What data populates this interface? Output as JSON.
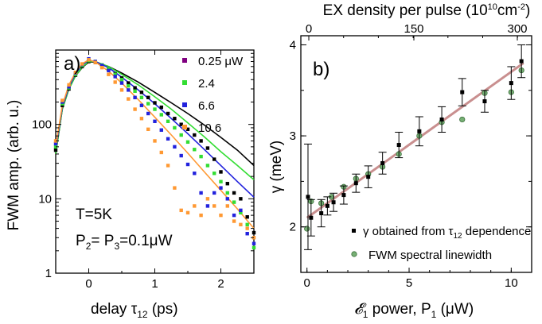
{
  "chart_data": [
    {
      "type": "scatter",
      "panel_label": "a)",
      "xlabel": "delay τ",
      "xlabel_sub": "12",
      "xlabel_unit": " (ps)",
      "ylabel": "FWM amp. (arb. u.)",
      "xlim": [
        -0.5,
        2.5
      ],
      "ylim": [
        1,
        1000
      ],
      "yscale": "log",
      "x_ticks": [
        "0",
        "1",
        "2"
      ],
      "y_ticks": [
        "1",
        "10",
        "100"
      ],
      "annotations": {
        "temperature": "T=5K",
        "power_prefix": "P",
        "power_sub_a": "2",
        "power_mid": "= P",
        "power_sub_b": "3",
        "power_suffix": "=0.1μW"
      },
      "series": [
        {
          "name": "0.25 μW",
          "color": "#800080",
          "points": [
            [
              -0.5,
              45
            ],
            [
              -0.4,
              180
            ],
            [
              -0.3,
              300
            ],
            [
              -0.2,
              460
            ],
            [
              -0.1,
              600
            ],
            [
              0,
              700
            ],
            [
              0.1,
              680
            ],
            [
              0.2,
              620
            ],
            [
              0.3,
              560
            ],
            [
              0.4,
              480
            ],
            [
              0.5,
              420
            ],
            [
              0.6,
              360
            ],
            [
              0.7,
              310
            ],
            [
              0.8,
              270
            ],
            [
              0.9,
              230
            ],
            [
              1.0,
              195
            ],
            [
              1.1,
              170
            ],
            [
              1.2,
              140
            ],
            [
              1.3,
              120
            ],
            [
              1.4,
              100
            ],
            [
              1.5,
              86
            ],
            [
              1.6,
              72
            ],
            [
              1.7,
              60
            ],
            [
              1.8,
              48
            ],
            [
              1.9,
              34
            ],
            [
              2.0,
              23
            ],
            [
              2.1,
              16
            ],
            [
              2.2,
              12
            ],
            [
              2.3,
              10
            ],
            [
              2.4,
              5.7
            ],
            [
              2.5,
              3.5
            ]
          ],
          "fit": [
            [
              -0.5,
              40
            ],
            [
              -0.4,
              160
            ],
            [
              -0.3,
              300
            ],
            [
              -0.2,
              450
            ],
            [
              -0.1,
              580
            ],
            [
              0,
              690
            ],
            [
              0.1,
              690
            ],
            [
              0.3,
              600
            ],
            [
              0.5,
              490
            ],
            [
              0.75,
              370
            ],
            [
              1.0,
              270
            ],
            [
              1.25,
              195
            ],
            [
              1.5,
              140
            ],
            [
              1.75,
              98
            ],
            [
              2.0,
              67
            ],
            [
              2.25,
              45
            ],
            [
              2.5,
              28
            ]
          ]
        },
        {
          "name": "2.4",
          "color": "#33dd33",
          "points": [
            [
              -0.5,
              50
            ],
            [
              -0.4,
              190
            ],
            [
              -0.3,
              310
            ],
            [
              -0.2,
              470
            ],
            [
              -0.1,
              620
            ],
            [
              0,
              720
            ],
            [
              0.1,
              700
            ],
            [
              0.2,
              630
            ],
            [
              0.3,
              560
            ],
            [
              0.4,
              470
            ],
            [
              0.5,
              400
            ],
            [
              0.6,
              330
            ],
            [
              0.7,
              280
            ],
            [
              0.8,
              230
            ],
            [
              0.9,
              190
            ],
            [
              1.0,
              160
            ],
            [
              1.1,
              135
            ],
            [
              1.2,
              110
            ],
            [
              1.3,
              90
            ],
            [
              1.4,
              72
            ],
            [
              1.5,
              58
            ],
            [
              1.6,
              46
            ],
            [
              1.7,
              37
            ],
            [
              1.8,
              28
            ],
            [
              1.9,
              22
            ],
            [
              2.0,
              17
            ],
            [
              2.1,
              12
            ],
            [
              2.2,
              9
            ],
            [
              2.3,
              6.5
            ],
            [
              2.4,
              4.5
            ],
            [
              2.5,
              2.2
            ]
          ],
          "fit": [
            [
              -0.5,
              40
            ],
            [
              -0.4,
              160
            ],
            [
              -0.3,
              300
            ],
            [
              -0.2,
              450
            ],
            [
              -0.1,
              590
            ],
            [
              0,
              700
            ],
            [
              0.1,
              700
            ],
            [
              0.3,
              600
            ],
            [
              0.5,
              470
            ],
            [
              0.75,
              340
            ],
            [
              1.0,
              235
            ],
            [
              1.25,
              160
            ],
            [
              1.5,
              105
            ],
            [
              1.75,
              68
            ],
            [
              2.0,
              43
            ],
            [
              2.25,
              28
            ],
            [
              2.5,
              18
            ]
          ]
        },
        {
          "name": "6.6",
          "color": "#2222dd",
          "points": [
            [
              -0.5,
              55
            ],
            [
              -0.4,
              200
            ],
            [
              -0.3,
              320
            ],
            [
              -0.2,
              490
            ],
            [
              -0.1,
              640
            ],
            [
              0,
              760
            ],
            [
              0.1,
              700
            ],
            [
              0.2,
              620
            ],
            [
              0.3,
              530
            ],
            [
              0.4,
              440
            ],
            [
              0.5,
              360
            ],
            [
              0.6,
              290
            ],
            [
              0.7,
              230
            ],
            [
              0.8,
              180
            ],
            [
              0.9,
              140
            ],
            [
              1.0,
              110
            ],
            [
              1.1,
              84
            ],
            [
              1.2,
              64
            ],
            [
              1.3,
              50
            ],
            [
              1.4,
              38
            ],
            [
              1.5,
              29
            ],
            [
              1.6,
              22
            ],
            [
              1.7,
              12
            ],
            [
              1.8,
              8
            ],
            [
              1.9,
              12
            ],
            [
              2.0,
              14
            ],
            [
              2.1,
              10
            ],
            [
              2.2,
              6
            ],
            [
              2.3,
              7
            ],
            [
              2.4,
              3.4
            ],
            [
              2.5,
              2.5
            ]
          ],
          "fit": [
            [
              -0.5,
              45
            ],
            [
              -0.4,
              170
            ],
            [
              -0.3,
              320
            ],
            [
              -0.2,
              480
            ],
            [
              -0.1,
              630
            ],
            [
              0,
              730
            ],
            [
              0.1,
              700
            ],
            [
              0.3,
              580
            ],
            [
              0.5,
              430
            ],
            [
              0.75,
              290
            ],
            [
              1.0,
              190
            ],
            [
              1.25,
              120
            ],
            [
              1.5,
              75
            ],
            [
              1.75,
              46
            ],
            [
              2.0,
              28
            ],
            [
              2.25,
              17
            ],
            [
              2.5,
              10.5
            ]
          ]
        },
        {
          "name": "10.6",
          "color": "#ff9933",
          "points": [
            [
              -0.5,
              60
            ],
            [
              -0.4,
              210
            ],
            [
              -0.3,
              340
            ],
            [
              -0.2,
              500
            ],
            [
              -0.1,
              650
            ],
            [
              0,
              740
            ],
            [
              0.1,
              680
            ],
            [
              0.2,
              580
            ],
            [
              0.3,
              470
            ],
            [
              0.4,
              370
            ],
            [
              0.5,
              290
            ],
            [
              0.6,
              220
            ],
            [
              0.7,
              160
            ],
            [
              0.8,
              120
            ],
            [
              0.9,
              86
            ],
            [
              1.0,
              60
            ],
            [
              1.1,
              42
            ],
            [
              1.2,
              28
            ],
            [
              1.3,
              14
            ],
            [
              1.4,
              7
            ],
            [
              1.5,
              6.5
            ],
            [
              1.6,
              8
            ],
            [
              1.7,
              6
            ],
            [
              1.8,
              10
            ],
            [
              1.9,
              8
            ],
            [
              2.0,
              6
            ],
            [
              2.1,
              8
            ],
            [
              2.2,
              5
            ],
            [
              2.3,
              4.5
            ],
            [
              2.4,
              4
            ],
            [
              2.5,
              3
            ]
          ],
          "fit": [
            [
              -0.5,
              50
            ],
            [
              -0.4,
              180
            ],
            [
              -0.3,
              340
            ],
            [
              -0.2,
              500
            ],
            [
              -0.1,
              650
            ],
            [
              0,
              740
            ],
            [
              0.1,
              690
            ],
            [
              0.3,
              520
            ],
            [
              0.5,
              360
            ],
            [
              0.75,
              215
            ],
            [
              1.0,
              125
            ],
            [
              1.25,
              72
            ],
            [
              1.5,
              41
            ],
            [
              1.75,
              23
            ],
            [
              2.0,
              13
            ],
            [
              2.25,
              7.3
            ],
            [
              2.5,
              4
            ]
          ]
        }
      ]
    },
    {
      "type": "scatter",
      "panel_label": "b)",
      "xlabel": "𝓔",
      "xlabel_sub": "1",
      "xlabel_rest": " power, P",
      "xlabel_sub2": "1",
      "xlabel_unit": " (μW)",
      "ylabel": "γ (meV)",
      "top_xlabel": "EX density per pulse (10",
      "top_xlabel_sup": "10",
      "top_xlabel_mid": "cm",
      "top_xlabel_sup2": "-2",
      "top_xlabel_end": ")",
      "xlim": [
        -0.3,
        11
      ],
      "ylim": [
        1.5,
        4.1
      ],
      "x_ticks": [
        "0",
        "5",
        "10"
      ],
      "y_ticks": [
        "2",
        "3",
        "4"
      ],
      "top_ticks": [
        "0",
        "150",
        "300"
      ],
      "fit_color": "#c98f8f",
      "fit_line": [
        [
          0,
          2.1
        ],
        [
          10.6,
          3.8
        ]
      ],
      "series": [
        {
          "name": "γ obtained from τ",
          "name_sub": "12",
          "name_suffix": " dependence",
          "color": "#000000",
          "points": [
            [
              0.05,
              2.33,
              0.58
            ],
            [
              0.2,
              2.1,
              0.2
            ],
            [
              0.7,
              2.15,
              0.15
            ],
            [
              1.0,
              2.23,
              0.1
            ],
            [
              1.3,
              2.27,
              0.1
            ],
            [
              1.8,
              2.35,
              0.1
            ],
            [
              2.4,
              2.48,
              0.1
            ],
            [
              3.0,
              2.55,
              0.12
            ],
            [
              3.7,
              2.7,
              0.12
            ],
            [
              4.5,
              2.9,
              0.14
            ],
            [
              5.5,
              3.05,
              0.16
            ],
            [
              6.6,
              3.18,
              0.14
            ],
            [
              7.6,
              3.48,
              0.15
            ],
            [
              8.7,
              3.38,
              0.12
            ],
            [
              10.0,
              3.58,
              0.18
            ],
            [
              10.5,
              3.82,
              0.18
            ]
          ]
        },
        {
          "name": "FWM spectral linewidth",
          "color": "#77b075",
          "points": [
            [
              0,
              1.98
            ],
            [
              0.2,
              2.28
            ],
            [
              0.7,
              2.26
            ],
            [
              1.2,
              2.33
            ],
            [
              1.8,
              2.44
            ],
            [
              2.4,
              2.53
            ],
            [
              3.0,
              2.58
            ],
            [
              3.7,
              2.66
            ],
            [
              4.5,
              2.8
            ],
            [
              5.5,
              3.0
            ],
            [
              6.6,
              3.15
            ],
            [
              7.6,
              3.18
            ],
            [
              8.7,
              3.47
            ],
            [
              10.0,
              3.48
            ],
            [
              10.5,
              3.72
            ]
          ]
        }
      ]
    }
  ]
}
